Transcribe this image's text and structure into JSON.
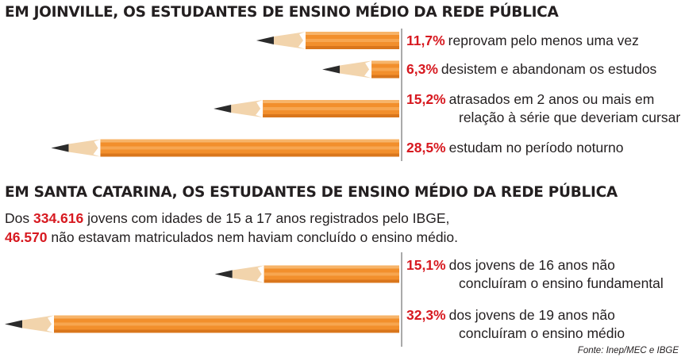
{
  "colors": {
    "accent_red": "#d71920",
    "pencil_orange": "#f28f2c",
    "text": "#231f20"
  },
  "chart_data": [
    {
      "type": "bar",
      "title": "EM JOINVILLE, OS ESTUDANTES DE ENSINO MÉDIO DA REDE PÚBLICA",
      "value_unit": "%",
      "bars": [
        {
          "value": 11.7,
          "value_label": "11,7%",
          "text_lines": [
            "reprovam pelo menos uma vez"
          ]
        },
        {
          "value": 6.3,
          "value_label": "6,3%",
          "text_lines": [
            "desistem e abandonam os estudos"
          ]
        },
        {
          "value": 15.2,
          "value_label": "15,2%",
          "text_lines": [
            "atrasados em 2 anos ou mais em",
            "relação à série que deveriam cursar"
          ]
        },
        {
          "value": 28.5,
          "value_label": "28,5%",
          "text_lines": [
            "estudam no período noturno"
          ]
        }
      ]
    },
    {
      "type": "bar",
      "title": "EM SANTA CATARINA, OS ESTUDANTES DE ENSINO MÉDIO DA REDE PÚBLICA",
      "intro": {
        "line1_prefix": "Dos ",
        "line1_number": "334.616",
        "line1_suffix": " jovens com idades de 15 a 17 anos registrados pelo IBGE,",
        "line2_number": "46.570",
        "line2_suffix": " não estavam matriculados nem haviam concluído o ensino médio."
      },
      "value_unit": "%",
      "bars": [
        {
          "value": 15.1,
          "value_label": "15,1%",
          "text_lines": [
            "dos jovens de 16 anos não",
            "concluíram o ensino fundamental"
          ]
        },
        {
          "value": 32.3,
          "value_label": "32,3%",
          "text_lines": [
            "dos jovens de 19 anos não",
            "concluíram o ensino médio"
          ]
        }
      ]
    }
  ],
  "source": "Fonte: Inep/MEC e IBGE"
}
